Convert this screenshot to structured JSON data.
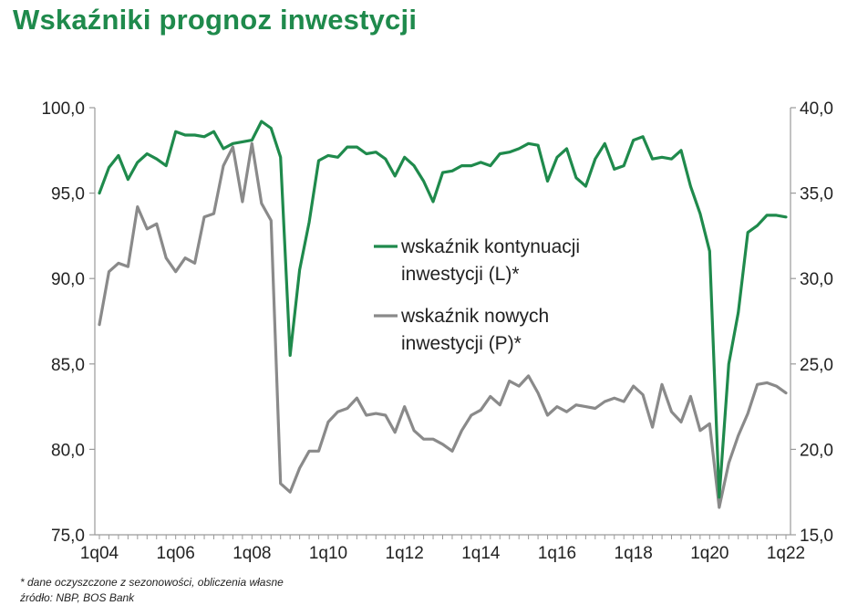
{
  "title": "Wskaźniki prognoz inwestycji",
  "footnotes": {
    "note": "* dane oczyszczone z sezonowości, obliczenia własne",
    "source": "źródło: NBP, BOS Bank"
  },
  "chart_data": {
    "type": "line",
    "title": "Wskaźniki prognoz inwestycji",
    "categories": [
      "1q04",
      "2q04",
      "3q04",
      "4q04",
      "1q05",
      "2q05",
      "3q05",
      "4q05",
      "1q06",
      "2q06",
      "3q06",
      "4q06",
      "1q07",
      "2q07",
      "3q07",
      "4q07",
      "1q08",
      "2q08",
      "3q08",
      "4q08",
      "1q09",
      "2q09",
      "3q09",
      "4q09",
      "1q10",
      "2q10",
      "3q10",
      "4q10",
      "1q11",
      "2q11",
      "3q11",
      "4q11",
      "1q12",
      "2q12",
      "3q12",
      "4q12",
      "1q13",
      "2q13",
      "3q13",
      "4q13",
      "1q14",
      "2q14",
      "3q14",
      "4q14",
      "1q15",
      "2q15",
      "3q15",
      "4q15",
      "1q16",
      "2q16",
      "3q16",
      "4q16",
      "1q17",
      "2q17",
      "3q17",
      "4q17",
      "1q18",
      "2q18",
      "3q18",
      "4q18",
      "1q19",
      "2q19",
      "3q19",
      "4q19",
      "1q20",
      "2q20",
      "3q20",
      "4q20",
      "1q21",
      "2q21",
      "3q21",
      "4q21",
      "1q22"
    ],
    "x_tick_labels": [
      "1q04",
      "1q06",
      "1q08",
      "1q10",
      "1q12",
      "1q14",
      "1q16",
      "1q18",
      "1q20",
      "1q22"
    ],
    "y_left": {
      "ylim": [
        75,
        100
      ],
      "ticks": [
        "75,0",
        "80,0",
        "85,0",
        "90,0",
        "95,0",
        "100,0"
      ]
    },
    "y_right": {
      "ylim": [
        15,
        40
      ],
      "ticks": [
        "15,0",
        "20,0",
        "25,0",
        "30,0",
        "35,0",
        "40,0"
      ]
    },
    "series": [
      {
        "name": "wskaźnik kontynuacji inwestycji (L)*",
        "axis": "left",
        "color": "#1f8a4c",
        "values": [
          95.0,
          96.5,
          97.2,
          95.8,
          96.8,
          97.3,
          97.0,
          96.6,
          98.6,
          98.4,
          98.4,
          98.3,
          98.6,
          97.6,
          97.9,
          98.0,
          98.1,
          99.2,
          98.8,
          97.1,
          85.5,
          90.5,
          93.3,
          96.9,
          97.2,
          97.1,
          97.7,
          97.7,
          97.3,
          97.4,
          97.0,
          96.0,
          97.1,
          96.6,
          95.7,
          94.5,
          96.2,
          96.3,
          96.6,
          96.6,
          96.8,
          96.6,
          97.3,
          97.4,
          97.6,
          97.9,
          97.8,
          95.7,
          97.1,
          97.6,
          95.9,
          95.4,
          97.0,
          97.9,
          96.4,
          96.6,
          98.1,
          98.3,
          97.0,
          97.1,
          97.0,
          97.5,
          95.4,
          93.8,
          91.6,
          77.2,
          85.0,
          88.0,
          92.7,
          93.1,
          93.7,
          93.7,
          93.6
        ]
      },
      {
        "name": "wskaźnik nowych inwestycji (P)*",
        "axis": "right",
        "color": "#8a8a8a",
        "values": [
          27.3,
          30.4,
          30.9,
          30.7,
          34.2,
          32.9,
          33.2,
          31.2,
          30.4,
          31.2,
          30.9,
          33.6,
          33.8,
          36.6,
          37.7,
          34.5,
          37.9,
          34.4,
          33.4,
          18.0,
          17.5,
          18.9,
          19.9,
          19.9,
          21.6,
          22.2,
          22.4,
          23.0,
          22.0,
          22.1,
          22.0,
          21.0,
          22.5,
          21.1,
          20.6,
          20.6,
          20.3,
          19.9,
          21.1,
          22.0,
          22.3,
          23.1,
          22.6,
          24.0,
          23.7,
          24.3,
          23.3,
          22.0,
          22.5,
          22.2,
          22.6,
          22.5,
          22.4,
          22.8,
          23.0,
          22.8,
          23.7,
          23.2,
          21.3,
          23.8,
          22.2,
          21.6,
          23.1,
          21.1,
          21.5,
          16.6,
          19.2,
          20.8,
          22.1,
          23.8,
          23.9,
          23.7,
          23.3
        ]
      }
    ],
    "legend_position": "center",
    "grid": false
  }
}
